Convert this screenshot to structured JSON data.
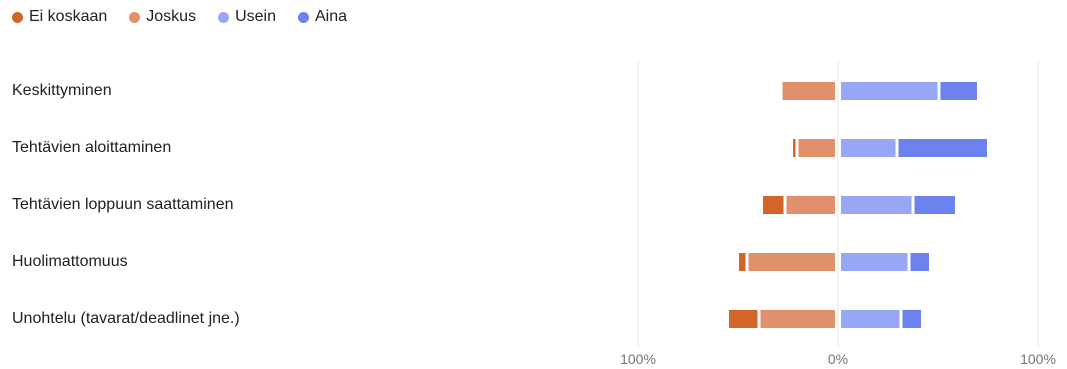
{
  "chart_data": {
    "type": "bar",
    "orientation": "horizontal",
    "stacked": "diverging",
    "categories": [
      "Keskittyminen",
      "Tehtävien aloittaminen",
      "Tehtävien loppuun saattaminen",
      "Huolimattomuus",
      "Unohtelu (tavarat/deadlinet jne.)"
    ],
    "series": [
      {
        "name": "Ei koskaan",
        "color": "#d1652a",
        "side": "negative",
        "values": [
          0,
          2,
          11,
          4,
          15
        ]
      },
      {
        "name": "Joskus",
        "color": "#e0906a",
        "side": "negative",
        "values": [
          27,
          19,
          25,
          44,
          38
        ]
      },
      {
        "name": "Usein",
        "color": "#98a7f5",
        "side": "positive",
        "values": [
          49,
          28,
          36,
          34,
          30
        ]
      },
      {
        "name": "Aina",
        "color": "#6b82ef",
        "side": "positive",
        "values": [
          19,
          45,
          21,
          10,
          10
        ]
      }
    ],
    "xlim": [
      -100,
      100
    ],
    "x_ticks": [
      "100%",
      "0%",
      "100%"
    ],
    "legend_position": "top-left",
    "grid": true
  }
}
